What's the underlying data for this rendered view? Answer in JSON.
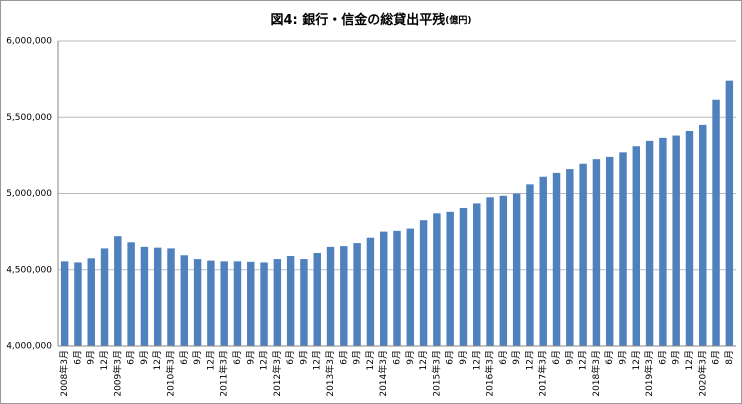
{
  "chart_data": {
    "type": "bar",
    "title": "図4: 銀行・信金の総貸出平残",
    "unit": "(億円)",
    "categories": [
      "2008年3月",
      "6月",
      "9月",
      "12月",
      "2009年3月",
      "6月",
      "9月",
      "12月",
      "2010年3月",
      "6月",
      "9月",
      "12月",
      "2011年3月",
      "6月",
      "9月",
      "12月",
      "2012年3月",
      "6月",
      "9月",
      "12月",
      "2013年3月",
      "6月",
      "9月",
      "12月",
      "2014年3月",
      "6月",
      "9月",
      "12月",
      "2015年3月",
      "6月",
      "9月",
      "12月",
      "2016年3月",
      "6月",
      "9月",
      "12月",
      "2017年3月",
      "6月",
      "9月",
      "12月",
      "2018年3月",
      "6月",
      "9月",
      "12月",
      "2019年3月",
      "6月",
      "9月",
      "12月",
      "2020年3月",
      "6月",
      "8月"
    ],
    "values": [
      4555000,
      4548000,
      4575000,
      4640000,
      4720000,
      4680000,
      4650000,
      4645000,
      4640000,
      4595000,
      4570000,
      4560000,
      4555000,
      4555000,
      4552000,
      4548000,
      4570000,
      4590000,
      4570000,
      4610000,
      4650000,
      4655000,
      4675000,
      4710000,
      4750000,
      4755000,
      4770000,
      4825000,
      4870000,
      4880000,
      4905000,
      4935000,
      4975000,
      4985000,
      5000000,
      5060000,
      5110000,
      5135000,
      5160000,
      5195000,
      5225000,
      5240000,
      5270000,
      5310000,
      5345000,
      5365000,
      5380000,
      5410000,
      5450000,
      5615000,
      5740000
    ],
    "color": "#4f81bd",
    "ylim": [
      4000000,
      6000000
    ],
    "yticks": [
      {
        "value": 4000000,
        "label": "4,000,000"
      },
      {
        "value": 4500000,
        "label": "4,500,000"
      },
      {
        "value": 5000000,
        "label": "5,000,000"
      },
      {
        "value": 5500000,
        "label": "5,500,000"
      },
      {
        "value": 6000000,
        "label": "6,000,000"
      }
    ],
    "grid": true
  }
}
